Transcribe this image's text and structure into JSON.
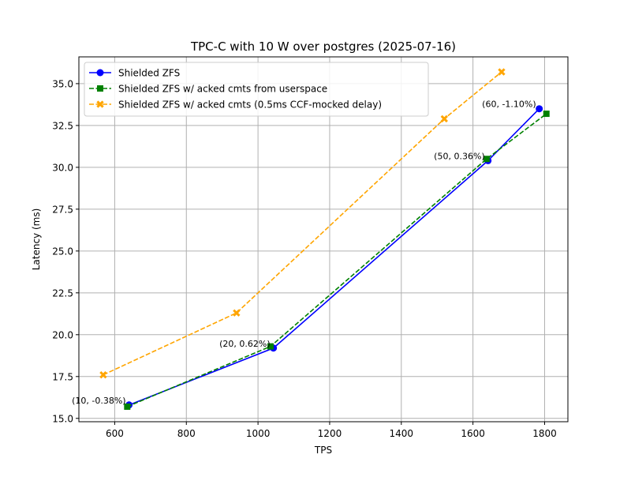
{
  "chart_data": {
    "type": "line",
    "title": "TPC-C with 10 W over postgres (2025-07-16)",
    "xlabel": "TPS",
    "ylabel": "Latency (ms)",
    "xlim": [
      500,
      1865
    ],
    "ylim": [
      14.8,
      36.6
    ],
    "xticks": [
      600,
      800,
      1000,
      1200,
      1400,
      1600,
      1800
    ],
    "yticks": [
      15.0,
      17.5,
      20.0,
      22.5,
      25.0,
      27.5,
      30.0,
      32.5,
      35.0
    ],
    "grid": true,
    "legend_position": "upper left",
    "series": [
      {
        "name": "Shielded ZFS",
        "color": "#0000ff",
        "linestyle": "solid",
        "marker": "circle",
        "x": [
          640,
          1043,
          1642,
          1785
        ],
        "y": [
          15.8,
          19.2,
          30.4,
          33.5
        ]
      },
      {
        "name": "Shielded ZFS w/ acked cmts from userspace",
        "color": "#008000",
        "linestyle": "dashed",
        "marker": "square",
        "x": [
          635,
          1035,
          1638,
          1805
        ],
        "y": [
          15.7,
          19.3,
          30.5,
          33.2
        ]
      },
      {
        "name": "Shielded ZFS w/ acked cmts (0.5ms CCF-mocked delay)",
        "color": "#ffa500",
        "linestyle": "dashed",
        "marker": "x",
        "x": [
          568,
          940,
          1520,
          1680
        ],
        "y": [
          17.6,
          21.3,
          32.9,
          35.7
        ]
      }
    ],
    "annotations": [
      {
        "text": "(10, -0.38%)",
        "x": 640,
        "y": 15.8
      },
      {
        "text": "(20, 0.62%)",
        "x": 1043,
        "y": 19.2
      },
      {
        "text": "(50, 0.36%)",
        "x": 1642,
        "y": 30.4
      },
      {
        "text": "(60, -1.10%)",
        "x": 1785,
        "y": 33.5
      }
    ]
  }
}
